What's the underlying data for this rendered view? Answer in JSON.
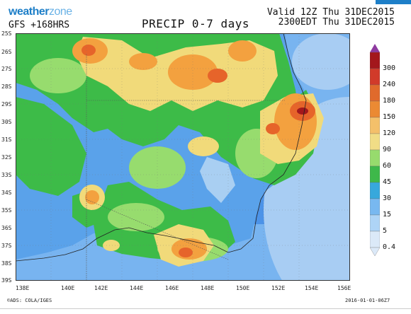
{
  "header": {
    "brand_main": "weather",
    "brand_accent": "zone",
    "model_label": "GFS +168HRS",
    "title": "PRECIP 0-7 days",
    "valid_line1": "Valid 12Z Thu 31DEC2015",
    "valid_line2": "2300EDT Thu 31DEC2015"
  },
  "map": {
    "y_labels": [
      "25S",
      "26S",
      "27S",
      "28S",
      "29S",
      "30S",
      "31S",
      "32S",
      "33S",
      "34S",
      "35S",
      "36S",
      "37S",
      "38S",
      "39S"
    ],
    "x_labels": [
      "138E",
      "140E",
      "142E",
      "144E",
      "146E",
      "148E",
      "150E",
      "152E",
      "154E",
      "156E"
    ],
    "colors": {
      "ocean": "#4a90e6",
      "light": "#a9cff2",
      "low": "#4aa0ea",
      "green": "#3dbb48",
      "lightgreen": "#97dc6e",
      "yellow": "#f1da7a",
      "orange": "#f3a13f",
      "deeporange": "#e6642a",
      "red": "#c82a20",
      "darkred": "#8a0f13"
    }
  },
  "legend": {
    "levels": [
      "300",
      "240",
      "180",
      "150",
      "120",
      "90",
      "60",
      "45",
      "30",
      "15",
      "5",
      "0.4"
    ],
    "colors": [
      "#8e3aa0",
      "#a3171c",
      "#d13a2a",
      "#e06a2c",
      "#eb8a33",
      "#f4c06a",
      "#f1dd86",
      "#97db6d",
      "#3eb84a",
      "#37a8dc",
      "#78b8f0",
      "#aed4f6",
      "#dbe9f8"
    ]
  },
  "footer": {
    "left": "©ADS: COLA/IGES",
    "right": "2016-01-01-06Z7"
  }
}
